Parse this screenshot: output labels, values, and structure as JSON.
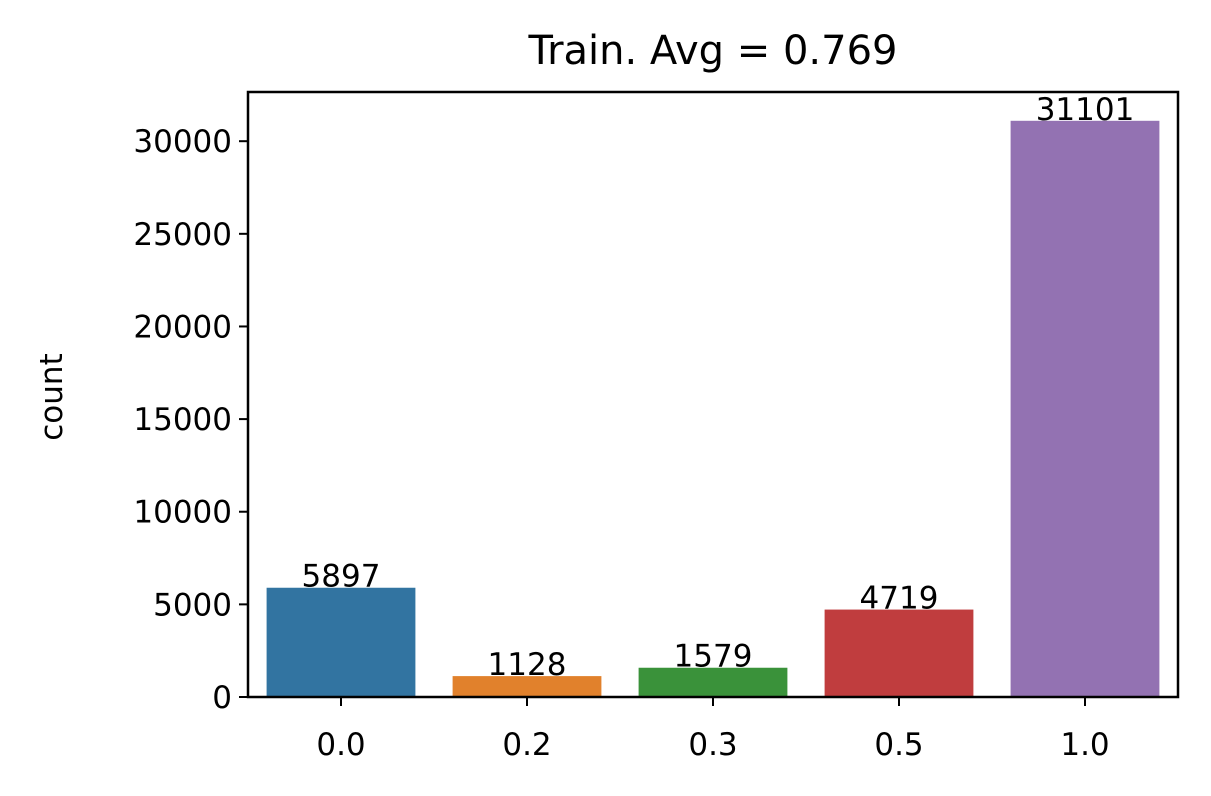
{
  "chart_data": {
    "type": "bar",
    "title": "Train. Avg = 0.769",
    "xlabel": "",
    "ylabel": "count",
    "categories": [
      "0.0",
      "0.2",
      "0.3",
      "0.5",
      "1.0"
    ],
    "values": [
      5897,
      1128,
      1579,
      4719,
      31101
    ],
    "data_labels": [
      "5897",
      "1128",
      "1579",
      "4719",
      "31101"
    ],
    "colors": [
      "#3274a1",
      "#e1812c",
      "#3a923a",
      "#c03d3e",
      "#9372b2"
    ],
    "ylim": [
      0,
      32655
    ],
    "yticks": [
      0,
      5000,
      10000,
      15000,
      20000,
      25000,
      30000
    ],
    "ytick_labels": [
      "0",
      "5000",
      "10000",
      "15000",
      "20000",
      "25000",
      "30000"
    ],
    "grid": false,
    "legend": "none"
  }
}
